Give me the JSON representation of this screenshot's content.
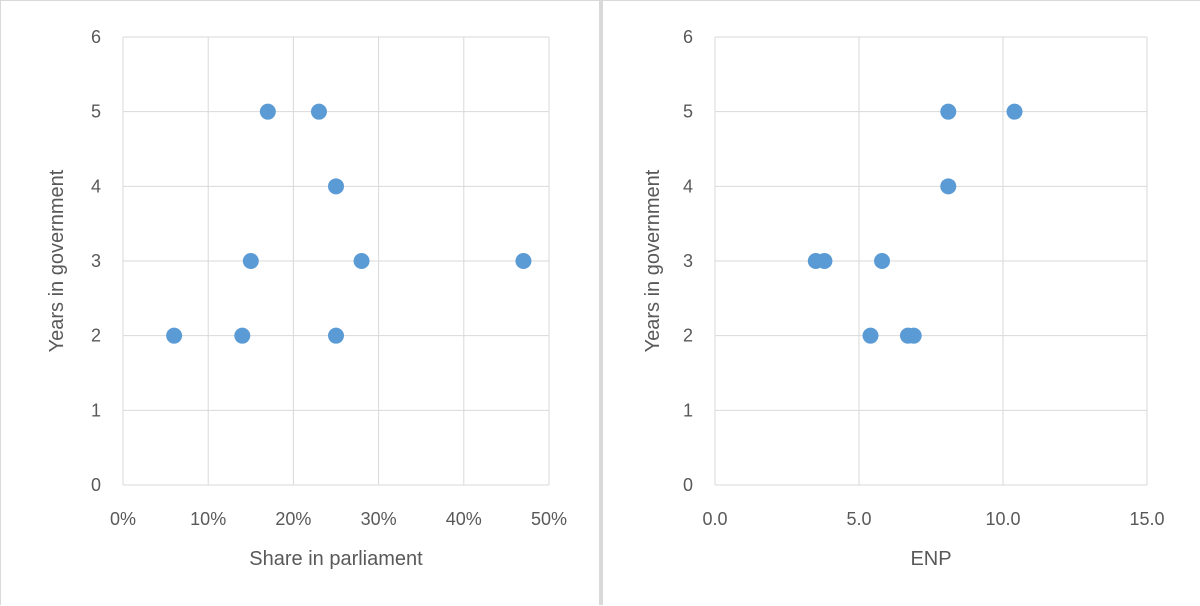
{
  "chart_data": [
    {
      "type": "scatter",
      "title": "",
      "xlabel": "Share in parliament",
      "ylabel": "Years in government",
      "xlim": [
        0,
        0.5
      ],
      "ylim": [
        0,
        6
      ],
      "x_ticks": [
        0,
        0.1,
        0.2,
        0.3,
        0.4,
        0.5
      ],
      "x_tick_labels": [
        "0%",
        "10%",
        "20%",
        "30%",
        "40%",
        "50%"
      ],
      "y_ticks": [
        0,
        1,
        2,
        3,
        4,
        5,
        6
      ],
      "y_tick_labels": [
        "0",
        "1",
        "2",
        "3",
        "4",
        "5",
        "6"
      ],
      "grid": true,
      "legend": "none",
      "point_color": "#5b9bd5",
      "series": [
        {
          "points": [
            {
              "x": 0.17,
              "y": 5
            },
            {
              "x": 0.23,
              "y": 5
            },
            {
              "x": 0.25,
              "y": 4
            },
            {
              "x": 0.15,
              "y": 3
            },
            {
              "x": 0.28,
              "y": 3
            },
            {
              "x": 0.47,
              "y": 3
            },
            {
              "x": 0.06,
              "y": 2
            },
            {
              "x": 0.14,
              "y": 2
            },
            {
              "x": 0.25,
              "y": 2
            }
          ]
        }
      ]
    },
    {
      "type": "scatter",
      "title": "",
      "xlabel": "ENP",
      "ylabel": "Years in government",
      "xlim": [
        0,
        15
      ],
      "ylim": [
        0,
        6
      ],
      "x_ticks": [
        0,
        5,
        10,
        15
      ],
      "x_tick_labels": [
        "0.0",
        "5.0",
        "10.0",
        "15.0"
      ],
      "y_ticks": [
        0,
        1,
        2,
        3,
        4,
        5,
        6
      ],
      "y_tick_labels": [
        "0",
        "1",
        "2",
        "3",
        "4",
        "5",
        "6"
      ],
      "grid": true,
      "legend": "none",
      "point_color": "#5b9bd5",
      "series": [
        {
          "points": [
            {
              "x": 8.1,
              "y": 5
            },
            {
              "x": 10.4,
              "y": 5
            },
            {
              "x": 8.1,
              "y": 4
            },
            {
              "x": 3.5,
              "y": 3
            },
            {
              "x": 3.8,
              "y": 3
            },
            {
              "x": 5.8,
              "y": 3
            },
            {
              "x": 5.4,
              "y": 2
            },
            {
              "x": 6.7,
              "y": 2
            },
            {
              "x": 6.9,
              "y": 2
            }
          ]
        }
      ]
    }
  ]
}
